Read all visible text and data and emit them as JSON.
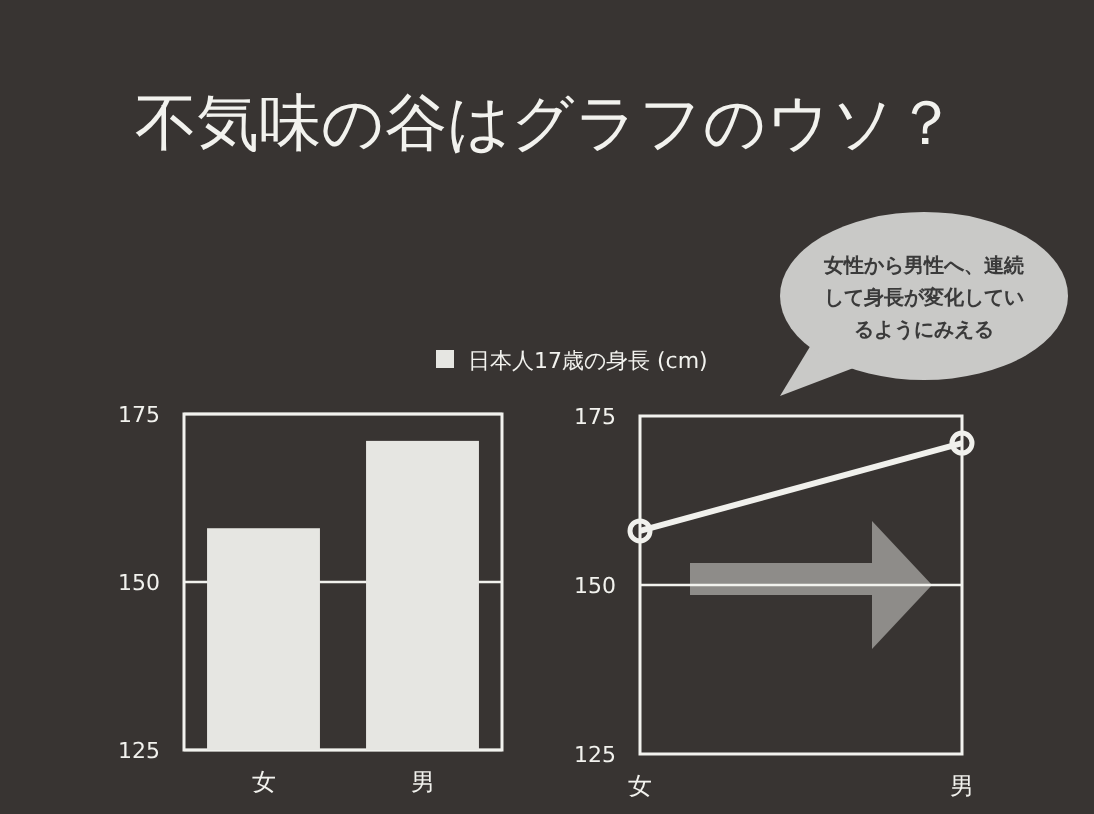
{
  "chart_data": [
    {
      "type": "bar",
      "title": "不気味の谷はグラフのウソ？",
      "categories": [
        "女",
        "男"
      ],
      "series": [
        {
          "name": "日本人17歳の身長 (cm)",
          "color": "#e6e6e2",
          "values": [
            158,
            171
          ]
        }
      ],
      "ylim": [
        125,
        175
      ],
      "yticks": [
        125,
        150,
        175
      ],
      "grid": "y",
      "legend": "top"
    },
    {
      "type": "line",
      "categories": [
        "女",
        "男"
      ],
      "series": [
        {
          "color": "#f0f0ec",
          "values": [
            158,
            171
          ]
        }
      ],
      "ylim": [
        125,
        175
      ],
      "yticks": [
        125,
        150,
        175
      ],
      "ref_lines": [
        {
          "axis": "y",
          "value": 150
        }
      ],
      "marker": "circle",
      "annotations": [
        "女性から男性へ、連続して身長が変化しているようにみえる"
      ]
    }
  ]
}
